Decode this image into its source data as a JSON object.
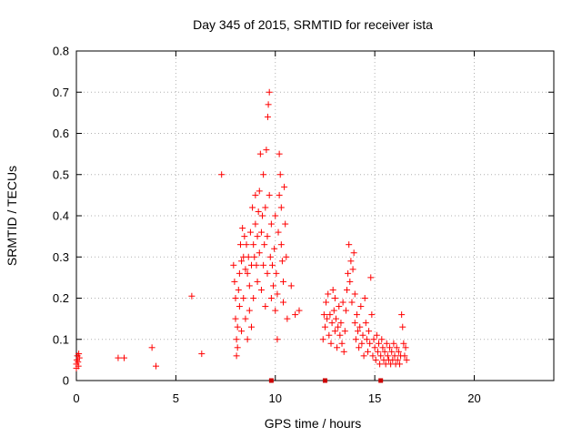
{
  "chart_data": {
    "type": "scatter",
    "title": "Day 345 of 2015, SRMTID for receiver ista",
    "xlabel": "GPS time / hours",
    "ylabel": "SRMTID / TECUs",
    "xlim": [
      0,
      24
    ],
    "ylim": [
      0,
      0.8
    ],
    "xticks": [
      0,
      5,
      10,
      15,
      20
    ],
    "yticks": [
      0,
      0.1,
      0.2,
      0.3,
      0.4,
      0.5,
      0.6,
      0.7,
      0.8
    ],
    "grid": true,
    "marker": "+",
    "color": "#ff0000",
    "zero_markers": {
      "x": [
        9.8,
        12.5,
        15.3
      ],
      "color": "#cc0000",
      "description": "zero-value markers on the x axis"
    },
    "series": [
      {
        "name": "SRMTID",
        "points": [
          [
            0.0,
            0.03
          ],
          [
            0.0,
            0.04
          ],
          [
            0.02,
            0.05
          ],
          [
            0.05,
            0.06
          ],
          [
            0.08,
            0.045
          ],
          [
            0.1,
            0.035
          ],
          [
            0.12,
            0.065
          ],
          [
            0.15,
            0.055
          ],
          [
            2.1,
            0.055
          ],
          [
            2.4,
            0.055
          ],
          [
            3.8,
            0.08
          ],
          [
            4.0,
            0.035
          ],
          [
            5.8,
            0.205
          ],
          [
            6.3,
            0.065
          ],
          [
            7.3,
            0.5
          ],
          [
            7.9,
            0.28
          ],
          [
            7.95,
            0.24
          ],
          [
            8.0,
            0.2
          ],
          [
            8.0,
            0.15
          ],
          [
            8.05,
            0.1
          ],
          [
            8.05,
            0.06
          ],
          [
            8.1,
            0.08
          ],
          [
            8.1,
            0.13
          ],
          [
            8.15,
            0.22
          ],
          [
            8.2,
            0.18
          ],
          [
            8.2,
            0.26
          ],
          [
            8.25,
            0.33
          ],
          [
            8.3,
            0.29
          ],
          [
            8.3,
            0.12
          ],
          [
            8.35,
            0.37
          ],
          [
            8.4,
            0.3
          ],
          [
            8.4,
            0.2
          ],
          [
            8.45,
            0.35
          ],
          [
            8.5,
            0.27
          ],
          [
            8.5,
            0.15
          ],
          [
            8.55,
            0.33
          ],
          [
            8.6,
            0.26
          ],
          [
            8.6,
            0.1
          ],
          [
            8.65,
            0.3
          ],
          [
            8.7,
            0.23
          ],
          [
            8.7,
            0.17
          ],
          [
            8.75,
            0.36
          ],
          [
            8.8,
            0.28
          ],
          [
            8.8,
            0.13
          ],
          [
            8.85,
            0.42
          ],
          [
            8.9,
            0.33
          ],
          [
            8.9,
            0.2
          ],
          [
            8.95,
            0.3
          ],
          [
            9.0,
            0.45
          ],
          [
            9.0,
            0.38
          ],
          [
            9.05,
            0.28
          ],
          [
            9.1,
            0.35
          ],
          [
            9.1,
            0.24
          ],
          [
            9.15,
            0.41
          ],
          [
            9.2,
            0.46
          ],
          [
            9.2,
            0.31
          ],
          [
            9.25,
            0.55
          ],
          [
            9.3,
            0.36
          ],
          [
            9.3,
            0.22
          ],
          [
            9.35,
            0.4
          ],
          [
            9.4,
            0.5
          ],
          [
            9.4,
            0.28
          ],
          [
            9.45,
            0.33
          ],
          [
            9.5,
            0.42
          ],
          [
            9.5,
            0.18
          ],
          [
            9.55,
            0.56
          ],
          [
            9.6,
            0.35
          ],
          [
            9.6,
            0.26
          ],
          [
            9.62,
            0.64
          ],
          [
            9.65,
            0.67
          ],
          [
            9.7,
            0.7
          ],
          [
            9.7,
            0.45
          ],
          [
            9.75,
            0.3
          ],
          [
            9.8,
            0.38
          ],
          [
            9.8,
            0.2
          ],
          [
            9.85,
            0.28
          ],
          [
            9.9,
            0.23
          ],
          [
            9.95,
            0.32
          ],
          [
            10.0,
            0.4
          ],
          [
            10.0,
            0.17
          ],
          [
            10.05,
            0.26
          ],
          [
            10.1,
            0.21
          ],
          [
            10.1,
            0.1
          ],
          [
            10.15,
            0.36
          ],
          [
            10.2,
            0.55
          ],
          [
            10.2,
            0.45
          ],
          [
            10.25,
            0.5
          ],
          [
            10.3,
            0.42
          ],
          [
            10.3,
            0.33
          ],
          [
            10.35,
            0.29
          ],
          [
            10.4,
            0.24
          ],
          [
            10.4,
            0.19
          ],
          [
            10.45,
            0.47
          ],
          [
            10.5,
            0.38
          ],
          [
            10.55,
            0.3
          ],
          [
            10.6,
            0.15
          ],
          [
            10.8,
            0.23
          ],
          [
            11.0,
            0.16
          ],
          [
            11.2,
            0.17
          ],
          [
            12.4,
            0.1
          ],
          [
            12.45,
            0.16
          ],
          [
            12.5,
            0.13
          ],
          [
            12.55,
            0.19
          ],
          [
            12.6,
            0.15
          ],
          [
            12.65,
            0.21
          ],
          [
            12.7,
            0.11
          ],
          [
            12.75,
            0.16
          ],
          [
            12.8,
            0.09
          ],
          [
            12.85,
            0.14
          ],
          [
            12.9,
            0.22
          ],
          [
            12.95,
            0.17
          ],
          [
            13.0,
            0.12
          ],
          [
            13.0,
            0.2
          ],
          [
            13.05,
            0.15
          ],
          [
            13.1,
            0.08
          ],
          [
            13.15,
            0.13
          ],
          [
            13.2,
            0.18
          ],
          [
            13.25,
            0.11
          ],
          [
            13.3,
            0.14
          ],
          [
            13.35,
            0.09
          ],
          [
            13.4,
            0.19
          ],
          [
            13.45,
            0.07
          ],
          [
            13.5,
            0.12
          ],
          [
            13.55,
            0.17
          ],
          [
            13.6,
            0.22
          ],
          [
            13.65,
            0.26
          ],
          [
            13.7,
            0.33
          ],
          [
            13.75,
            0.24
          ],
          [
            13.8,
            0.29
          ],
          [
            13.85,
            0.19
          ],
          [
            13.9,
            0.27
          ],
          [
            13.95,
            0.31
          ],
          [
            14.0,
            0.14
          ],
          [
            14.0,
            0.21
          ],
          [
            14.05,
            0.1
          ],
          [
            14.1,
            0.16
          ],
          [
            14.15,
            0.12
          ],
          [
            14.2,
            0.08
          ],
          [
            14.25,
            0.13
          ],
          [
            14.3,
            0.18
          ],
          [
            14.35,
            0.09
          ],
          [
            14.4,
            0.11
          ],
          [
            14.45,
            0.06
          ],
          [
            14.5,
            0.2
          ],
          [
            14.55,
            0.14
          ],
          [
            14.6,
            0.1
          ],
          [
            14.65,
            0.07
          ],
          [
            14.7,
            0.12
          ],
          [
            14.75,
            0.09
          ],
          [
            14.8,
            0.25
          ],
          [
            14.85,
            0.16
          ],
          [
            14.9,
            0.06
          ],
          [
            14.95,
            0.1
          ],
          [
            15.0,
            0.08
          ],
          [
            15.05,
            0.05
          ],
          [
            15.1,
            0.11
          ],
          [
            15.15,
            0.07
          ],
          [
            15.2,
            0.09
          ],
          [
            15.25,
            0.04
          ],
          [
            15.3,
            0.06
          ],
          [
            15.35,
            0.1
          ],
          [
            15.4,
            0.08
          ],
          [
            15.45,
            0.05
          ],
          [
            15.5,
            0.07
          ],
          [
            15.55,
            0.04
          ],
          [
            15.6,
            0.09
          ],
          [
            15.65,
            0.06
          ],
          [
            15.7,
            0.05
          ],
          [
            15.75,
            0.08
          ],
          [
            15.8,
            0.04
          ],
          [
            15.85,
            0.07
          ],
          [
            15.9,
            0.05
          ],
          [
            15.95,
            0.09
          ],
          [
            16.0,
            0.06
          ],
          [
            16.05,
            0.04
          ],
          [
            16.1,
            0.08
          ],
          [
            16.15,
            0.05
          ],
          [
            16.2,
            0.07
          ],
          [
            16.25,
            0.04
          ],
          [
            16.3,
            0.06
          ],
          [
            16.35,
            0.16
          ],
          [
            16.4,
            0.13
          ],
          [
            16.45,
            0.09
          ],
          [
            16.5,
            0.06
          ],
          [
            16.55,
            0.08
          ],
          [
            16.6,
            0.05
          ]
        ]
      }
    ]
  }
}
